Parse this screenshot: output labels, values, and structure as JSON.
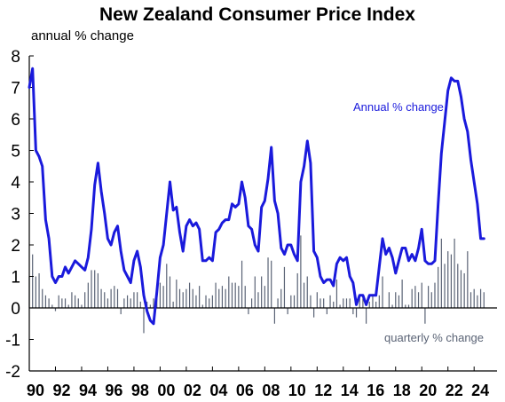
{
  "chart_data": {
    "type": "line",
    "title": "New Zealand Consumer Price Index",
    "ylabel": "annual % change",
    "ylim": [
      -2,
      8
    ],
    "yticks": [
      "-2",
      "-1",
      "0",
      "1",
      "2",
      "3",
      "4",
      "5",
      "6",
      "7",
      "8"
    ],
    "xlim": [
      1990,
      2025.75
    ],
    "xticks": [
      "90",
      "92",
      "94",
      "96",
      "98",
      "00",
      "02",
      "04",
      "06",
      "08",
      "10",
      "12",
      "14",
      "16",
      "18",
      "20",
      "22",
      "24"
    ],
    "grid": false,
    "colors": {
      "annual": "#1a1adc",
      "quarterly": "#5a6375",
      "axis": "#000000"
    },
    "series": [
      {
        "name": "Annual % change",
        "kind": "line",
        "points": [
          [
            1990.0,
            7.0
          ],
          [
            1990.25,
            7.6
          ],
          [
            1990.5,
            5.0
          ],
          [
            1990.75,
            4.8
          ],
          [
            1991.0,
            4.5
          ],
          [
            1991.25,
            2.8
          ],
          [
            1991.5,
            2.2
          ],
          [
            1991.75,
            1.0
          ],
          [
            1992.0,
            0.8
          ],
          [
            1992.25,
            1.0
          ],
          [
            1992.5,
            1.0
          ],
          [
            1992.75,
            1.3
          ],
          [
            1993.0,
            1.1
          ],
          [
            1993.25,
            1.3
          ],
          [
            1993.5,
            1.5
          ],
          [
            1993.75,
            1.4
          ],
          [
            1994.0,
            1.3
          ],
          [
            1994.25,
            1.2
          ],
          [
            1994.5,
            1.6
          ],
          [
            1994.75,
            2.5
          ],
          [
            1995.0,
            3.9
          ],
          [
            1995.25,
            4.6
          ],
          [
            1995.5,
            3.7
          ],
          [
            1995.75,
            3.0
          ],
          [
            1996.0,
            2.2
          ],
          [
            1996.25,
            2.0
          ],
          [
            1996.5,
            2.4
          ],
          [
            1996.75,
            2.6
          ],
          [
            1997.0,
            1.8
          ],
          [
            1997.25,
            1.2
          ],
          [
            1997.5,
            1.0
          ],
          [
            1997.75,
            0.8
          ],
          [
            1998.0,
            1.5
          ],
          [
            1998.25,
            1.8
          ],
          [
            1998.5,
            1.3
          ],
          [
            1998.75,
            0.4
          ],
          [
            1999.0,
            -0.1
          ],
          [
            1999.25,
            -0.4
          ],
          [
            1999.5,
            -0.5
          ],
          [
            1999.75,
            0.5
          ],
          [
            2000.0,
            1.6
          ],
          [
            2000.25,
            2.0
          ],
          [
            2000.5,
            3.0
          ],
          [
            2000.75,
            4.0
          ],
          [
            2001.0,
            3.1
          ],
          [
            2001.25,
            3.2
          ],
          [
            2001.5,
            2.4
          ],
          [
            2001.75,
            1.8
          ],
          [
            2002.0,
            2.6
          ],
          [
            2002.25,
            2.8
          ],
          [
            2002.5,
            2.6
          ],
          [
            2002.75,
            2.7
          ],
          [
            2003.0,
            2.5
          ],
          [
            2003.25,
            1.5
          ],
          [
            2003.5,
            1.5
          ],
          [
            2003.75,
            1.6
          ],
          [
            2004.0,
            1.5
          ],
          [
            2004.25,
            2.4
          ],
          [
            2004.5,
            2.5
          ],
          [
            2004.75,
            2.7
          ],
          [
            2005.0,
            2.8
          ],
          [
            2005.25,
            2.8
          ],
          [
            2005.5,
            3.3
          ],
          [
            2005.75,
            3.2
          ],
          [
            2006.0,
            3.3
          ],
          [
            2006.25,
            4.0
          ],
          [
            2006.5,
            3.5
          ],
          [
            2006.75,
            2.6
          ],
          [
            2007.0,
            2.5
          ],
          [
            2007.25,
            2.0
          ],
          [
            2007.5,
            1.8
          ],
          [
            2007.75,
            3.2
          ],
          [
            2008.0,
            3.4
          ],
          [
            2008.25,
            4.1
          ],
          [
            2008.5,
            5.1
          ],
          [
            2008.75,
            3.4
          ],
          [
            2009.0,
            3.0
          ],
          [
            2009.25,
            1.9
          ],
          [
            2009.5,
            1.7
          ],
          [
            2009.75,
            2.0
          ],
          [
            2010.0,
            2.0
          ],
          [
            2010.25,
            1.7
          ],
          [
            2010.5,
            1.5
          ],
          [
            2010.75,
            4.0
          ],
          [
            2011.0,
            4.5
          ],
          [
            2011.25,
            5.3
          ],
          [
            2011.5,
            4.6
          ],
          [
            2011.75,
            1.8
          ],
          [
            2012.0,
            1.6
          ],
          [
            2012.25,
            1.0
          ],
          [
            2012.5,
            0.8
          ],
          [
            2012.75,
            0.9
          ],
          [
            2013.0,
            0.9
          ],
          [
            2013.25,
            0.7
          ],
          [
            2013.5,
            1.4
          ],
          [
            2013.75,
            1.6
          ],
          [
            2014.0,
            1.5
          ],
          [
            2014.25,
            1.6
          ],
          [
            2014.5,
            1.0
          ],
          [
            2014.75,
            0.8
          ],
          [
            2015.0,
            0.1
          ],
          [
            2015.25,
            0.4
          ],
          [
            2015.5,
            0.4
          ],
          [
            2015.75,
            0.1
          ],
          [
            2016.0,
            0.4
          ],
          [
            2016.25,
            0.4
          ],
          [
            2016.5,
            0.4
          ],
          [
            2016.75,
            1.3
          ],
          [
            2017.0,
            2.2
          ],
          [
            2017.25,
            1.7
          ],
          [
            2017.5,
            1.9
          ],
          [
            2017.75,
            1.6
          ],
          [
            2018.0,
            1.1
          ],
          [
            2018.25,
            1.5
          ],
          [
            2018.5,
            1.9
          ],
          [
            2018.75,
            1.9
          ],
          [
            2019.0,
            1.5
          ],
          [
            2019.25,
            1.7
          ],
          [
            2019.5,
            1.5
          ],
          [
            2019.75,
            1.9
          ],
          [
            2020.0,
            2.5
          ],
          [
            2020.25,
            1.5
          ],
          [
            2020.5,
            1.4
          ],
          [
            2020.75,
            1.4
          ],
          [
            2021.0,
            1.5
          ],
          [
            2021.25,
            3.3
          ],
          [
            2021.5,
            4.9
          ],
          [
            2021.75,
            5.9
          ],
          [
            2022.0,
            6.9
          ],
          [
            2022.25,
            7.3
          ],
          [
            2022.5,
            7.2
          ],
          [
            2022.75,
            7.2
          ],
          [
            2023.0,
            6.7
          ],
          [
            2023.25,
            6.0
          ],
          [
            2023.5,
            5.6
          ],
          [
            2023.75,
            4.7
          ],
          [
            2024.0,
            4.0
          ],
          [
            2024.25,
            3.3
          ],
          [
            2024.5,
            2.2
          ],
          [
            2024.75,
            2.2
          ]
        ]
      },
      {
        "name": "quarterly % change",
        "kind": "bar",
        "points": [
          [
            1990.0,
            1.0
          ],
          [
            1990.25,
            1.7
          ],
          [
            1990.5,
            1.0
          ],
          [
            1990.75,
            1.1
          ],
          [
            1991.0,
            0.6
          ],
          [
            1991.25,
            0.4
          ],
          [
            1991.5,
            0.3
          ],
          [
            1991.75,
            0.1
          ],
          [
            1992.0,
            -0.1
          ],
          [
            1992.25,
            0.4
          ],
          [
            1992.5,
            0.3
          ],
          [
            1992.75,
            0.3
          ],
          [
            1993.0,
            0.1
          ],
          [
            1993.25,
            0.5
          ],
          [
            1993.5,
            0.4
          ],
          [
            1993.75,
            0.3
          ],
          [
            1994.0,
            0.1
          ],
          [
            1994.25,
            0.5
          ],
          [
            1994.5,
            0.8
          ],
          [
            1994.75,
            1.2
          ],
          [
            1995.0,
            1.2
          ],
          [
            1995.25,
            1.1
          ],
          [
            1995.5,
            0.6
          ],
          [
            1995.75,
            0.5
          ],
          [
            1996.0,
            0.3
          ],
          [
            1996.25,
            0.6
          ],
          [
            1996.5,
            0.7
          ],
          [
            1996.75,
            0.6
          ],
          [
            1997.0,
            -0.2
          ],
          [
            1997.25,
            0.3
          ],
          [
            1997.5,
            0.4
          ],
          [
            1997.75,
            0.3
          ],
          [
            1998.0,
            0.5
          ],
          [
            1998.25,
            0.5
          ],
          [
            1998.5,
            0.2
          ],
          [
            1998.75,
            -0.8
          ],
          [
            1999.0,
            0.2
          ],
          [
            1999.25,
            0.1
          ],
          [
            1999.5,
            0.3
          ],
          [
            1999.75,
            0.5
          ],
          [
            2000.0,
            0.8
          ],
          [
            2000.25,
            0.7
          ],
          [
            2000.5,
            1.4
          ],
          [
            2000.75,
            1.0
          ],
          [
            2001.0,
            0.2
          ],
          [
            2001.25,
            0.9
          ],
          [
            2001.5,
            0.6
          ],
          [
            2001.75,
            0.5
          ],
          [
            2002.0,
            0.6
          ],
          [
            2002.25,
            0.8
          ],
          [
            2002.5,
            0.6
          ],
          [
            2002.75,
            0.4
          ],
          [
            2003.0,
            0.7
          ],
          [
            2003.25,
            0.1
          ],
          [
            2003.5,
            0.4
          ],
          [
            2003.75,
            0.3
          ],
          [
            2004.0,
            0.4
          ],
          [
            2004.25,
            0.8
          ],
          [
            2004.5,
            0.6
          ],
          [
            2004.75,
            0.7
          ],
          [
            2005.0,
            0.6
          ],
          [
            2005.25,
            1.0
          ],
          [
            2005.5,
            0.8
          ],
          [
            2005.75,
            0.8
          ],
          [
            2006.0,
            0.7
          ],
          [
            2006.25,
            1.5
          ],
          [
            2006.5,
            0.7
          ],
          [
            2006.75,
            -0.2
          ],
          [
            2007.0,
            0.3
          ],
          [
            2007.25,
            1.0
          ],
          [
            2007.5,
            0.5
          ],
          [
            2007.75,
            1.0
          ],
          [
            2008.0,
            0.7
          ],
          [
            2008.25,
            1.6
          ],
          [
            2008.5,
            1.5
          ],
          [
            2008.75,
            -0.5
          ],
          [
            2009.0,
            0.3
          ],
          [
            2009.25,
            0.6
          ],
          [
            2009.5,
            1.3
          ],
          [
            2009.75,
            -0.2
          ],
          [
            2010.0,
            0.4
          ],
          [
            2010.25,
            0.4
          ],
          [
            2010.5,
            1.1
          ],
          [
            2010.75,
            2.3
          ],
          [
            2011.0,
            0.8
          ],
          [
            2011.25,
            1.0
          ],
          [
            2011.5,
            0.4
          ],
          [
            2011.75,
            -0.3
          ],
          [
            2012.0,
            0.5
          ],
          [
            2012.25,
            0.3
          ],
          [
            2012.5,
            0.3
          ],
          [
            2012.75,
            -0.2
          ],
          [
            2013.0,
            0.4
          ],
          [
            2013.25,
            0.2
          ],
          [
            2013.5,
            0.9
          ],
          [
            2013.75,
            0.1
          ],
          [
            2014.0,
            0.3
          ],
          [
            2014.25,
            0.3
          ],
          [
            2014.5,
            0.3
          ],
          [
            2014.75,
            -0.2
          ],
          [
            2015.0,
            -0.3
          ],
          [
            2015.25,
            0.4
          ],
          [
            2015.5,
            0.3
          ],
          [
            2015.75,
            -0.5
          ],
          [
            2016.0,
            0.2
          ],
          [
            2016.25,
            0.4
          ],
          [
            2016.5,
            0.2
          ],
          [
            2016.75,
            0.4
          ],
          [
            2017.0,
            1.0
          ],
          [
            2017.25,
            0.0
          ],
          [
            2017.5,
            0.5
          ],
          [
            2017.75,
            0.1
          ],
          [
            2018.0,
            0.5
          ],
          [
            2018.25,
            0.4
          ],
          [
            2018.5,
            0.9
          ],
          [
            2018.75,
            0.1
          ],
          [
            2019.0,
            0.1
          ],
          [
            2019.25,
            0.6
          ],
          [
            2019.5,
            0.7
          ],
          [
            2019.75,
            0.5
          ],
          [
            2020.0,
            0.8
          ],
          [
            2020.25,
            -0.5
          ],
          [
            2020.5,
            0.7
          ],
          [
            2020.75,
            0.5
          ],
          [
            2021.0,
            0.8
          ],
          [
            2021.25,
            1.3
          ],
          [
            2021.5,
            2.2
          ],
          [
            2021.75,
            1.4
          ],
          [
            2022.0,
            1.8
          ],
          [
            2022.25,
            1.7
          ],
          [
            2022.5,
            2.2
          ],
          [
            2022.75,
            1.4
          ],
          [
            2023.0,
            1.2
          ],
          [
            2023.25,
            1.1
          ],
          [
            2023.5,
            1.8
          ],
          [
            2023.75,
            0.5
          ],
          [
            2024.0,
            0.6
          ],
          [
            2024.25,
            0.4
          ],
          [
            2024.5,
            0.6
          ],
          [
            2024.75,
            0.5
          ]
        ]
      }
    ]
  }
}
